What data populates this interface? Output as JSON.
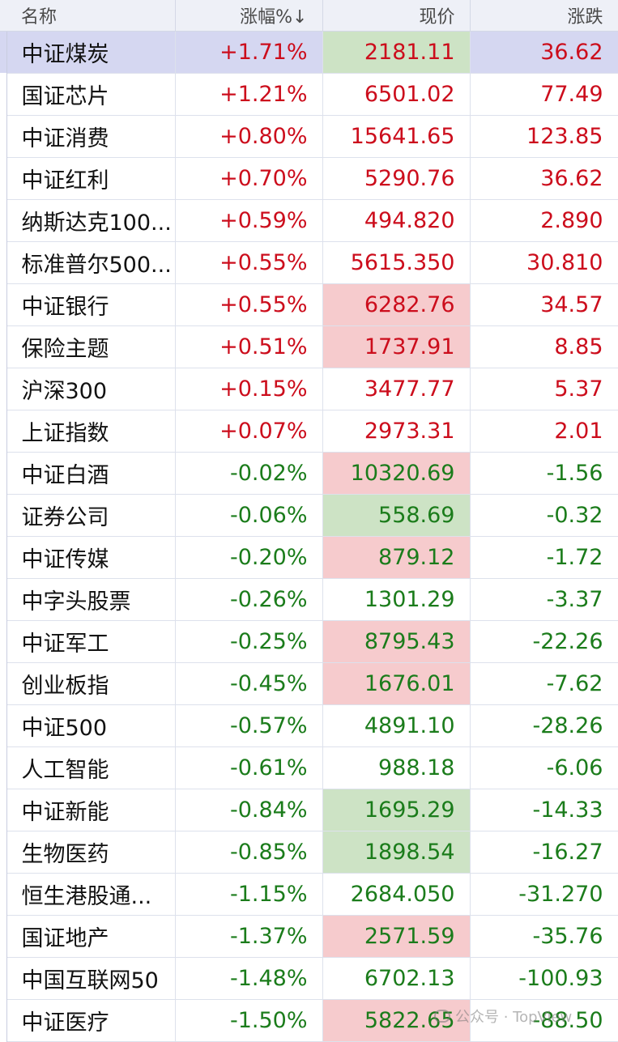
{
  "header": {
    "name": "名称",
    "change_pct": "涨幅%↓",
    "price": "现价",
    "change": "涨跌"
  },
  "colors": {
    "up": "#cc0d1c",
    "down": "#1b7c1b",
    "selected_row": "#d5d7f1",
    "flash_red": "#f6cbcd",
    "flash_green": "#cde3c5"
  },
  "rows": [
    {
      "name": "中证煤炭",
      "pct": "+1.71%",
      "price": "2181.11",
      "change": "36.62",
      "dir": "up",
      "flash": "green",
      "selected": true
    },
    {
      "name": "国证芯片",
      "pct": "+1.21%",
      "price": "6501.02",
      "change": "77.49",
      "dir": "up",
      "flash": ""
    },
    {
      "name": "中证消费",
      "pct": "+0.80%",
      "price": "15641.65",
      "change": "123.85",
      "dir": "up",
      "flash": ""
    },
    {
      "name": "中证红利",
      "pct": "+0.70%",
      "price": "5290.76",
      "change": "36.62",
      "dir": "up",
      "flash": ""
    },
    {
      "name": "纳斯达克100...",
      "pct": "+0.59%",
      "price": "494.820",
      "change": "2.890",
      "dir": "up",
      "flash": ""
    },
    {
      "name": "标准普尔500...",
      "pct": "+0.55%",
      "price": "5615.350",
      "change": "30.810",
      "dir": "up",
      "flash": ""
    },
    {
      "name": "中证银行",
      "pct": "+0.55%",
      "price": "6282.76",
      "change": "34.57",
      "dir": "up",
      "flash": "red"
    },
    {
      "name": "保险主题",
      "pct": "+0.51%",
      "price": "1737.91",
      "change": "8.85",
      "dir": "up",
      "flash": "red"
    },
    {
      "name": "沪深300",
      "pct": "+0.15%",
      "price": "3477.77",
      "change": "5.37",
      "dir": "up",
      "flash": ""
    },
    {
      "name": "上证指数",
      "pct": "+0.07%",
      "price": "2973.31",
      "change": "2.01",
      "dir": "up",
      "flash": ""
    },
    {
      "name": "中证白酒",
      "pct": "-0.02%",
      "price": "10320.69",
      "change": "-1.56",
      "dir": "down",
      "flash": "red"
    },
    {
      "name": "证券公司",
      "pct": "-0.06%",
      "price": "558.69",
      "change": "-0.32",
      "dir": "down",
      "flash": "green"
    },
    {
      "name": "中证传媒",
      "pct": "-0.20%",
      "price": "879.12",
      "change": "-1.72",
      "dir": "down",
      "flash": "red"
    },
    {
      "name": "中字头股票",
      "pct": "-0.26%",
      "price": "1301.29",
      "change": "-3.37",
      "dir": "down",
      "flash": ""
    },
    {
      "name": "中证军工",
      "pct": "-0.25%",
      "price": "8795.43",
      "change": "-22.26",
      "dir": "down",
      "flash": "red"
    },
    {
      "name": "创业板指",
      "pct": "-0.45%",
      "price": "1676.01",
      "change": "-7.62",
      "dir": "down",
      "flash": "red"
    },
    {
      "name": "中证500",
      "pct": "-0.57%",
      "price": "4891.10",
      "change": "-28.26",
      "dir": "down",
      "flash": ""
    },
    {
      "name": "人工智能",
      "pct": "-0.61%",
      "price": "988.18",
      "change": "-6.06",
      "dir": "down",
      "flash": ""
    },
    {
      "name": "中证新能",
      "pct": "-0.84%",
      "price": "1695.29",
      "change": "-14.33",
      "dir": "down",
      "flash": "green"
    },
    {
      "name": "生物医药",
      "pct": "-0.85%",
      "price": "1898.54",
      "change": "-16.27",
      "dir": "down",
      "flash": "green"
    },
    {
      "name": "恒生港股通...",
      "pct": "-1.15%",
      "price": "2684.050",
      "change": "-31.270",
      "dir": "down",
      "flash": ""
    },
    {
      "name": "国证地产",
      "pct": "-1.37%",
      "price": "2571.59",
      "change": "-35.76",
      "dir": "down",
      "flash": "red"
    },
    {
      "name": "中国互联网50",
      "pct": "-1.48%",
      "price": "6702.13",
      "change": "-100.93",
      "dir": "down",
      "flash": ""
    },
    {
      "name": "中证医疗",
      "pct": "-1.50%",
      "price": "5822.65",
      "change": "-88.50",
      "dir": "down",
      "flash": "red"
    }
  ],
  "watermark": {
    "text": "公众号 · TopView"
  }
}
